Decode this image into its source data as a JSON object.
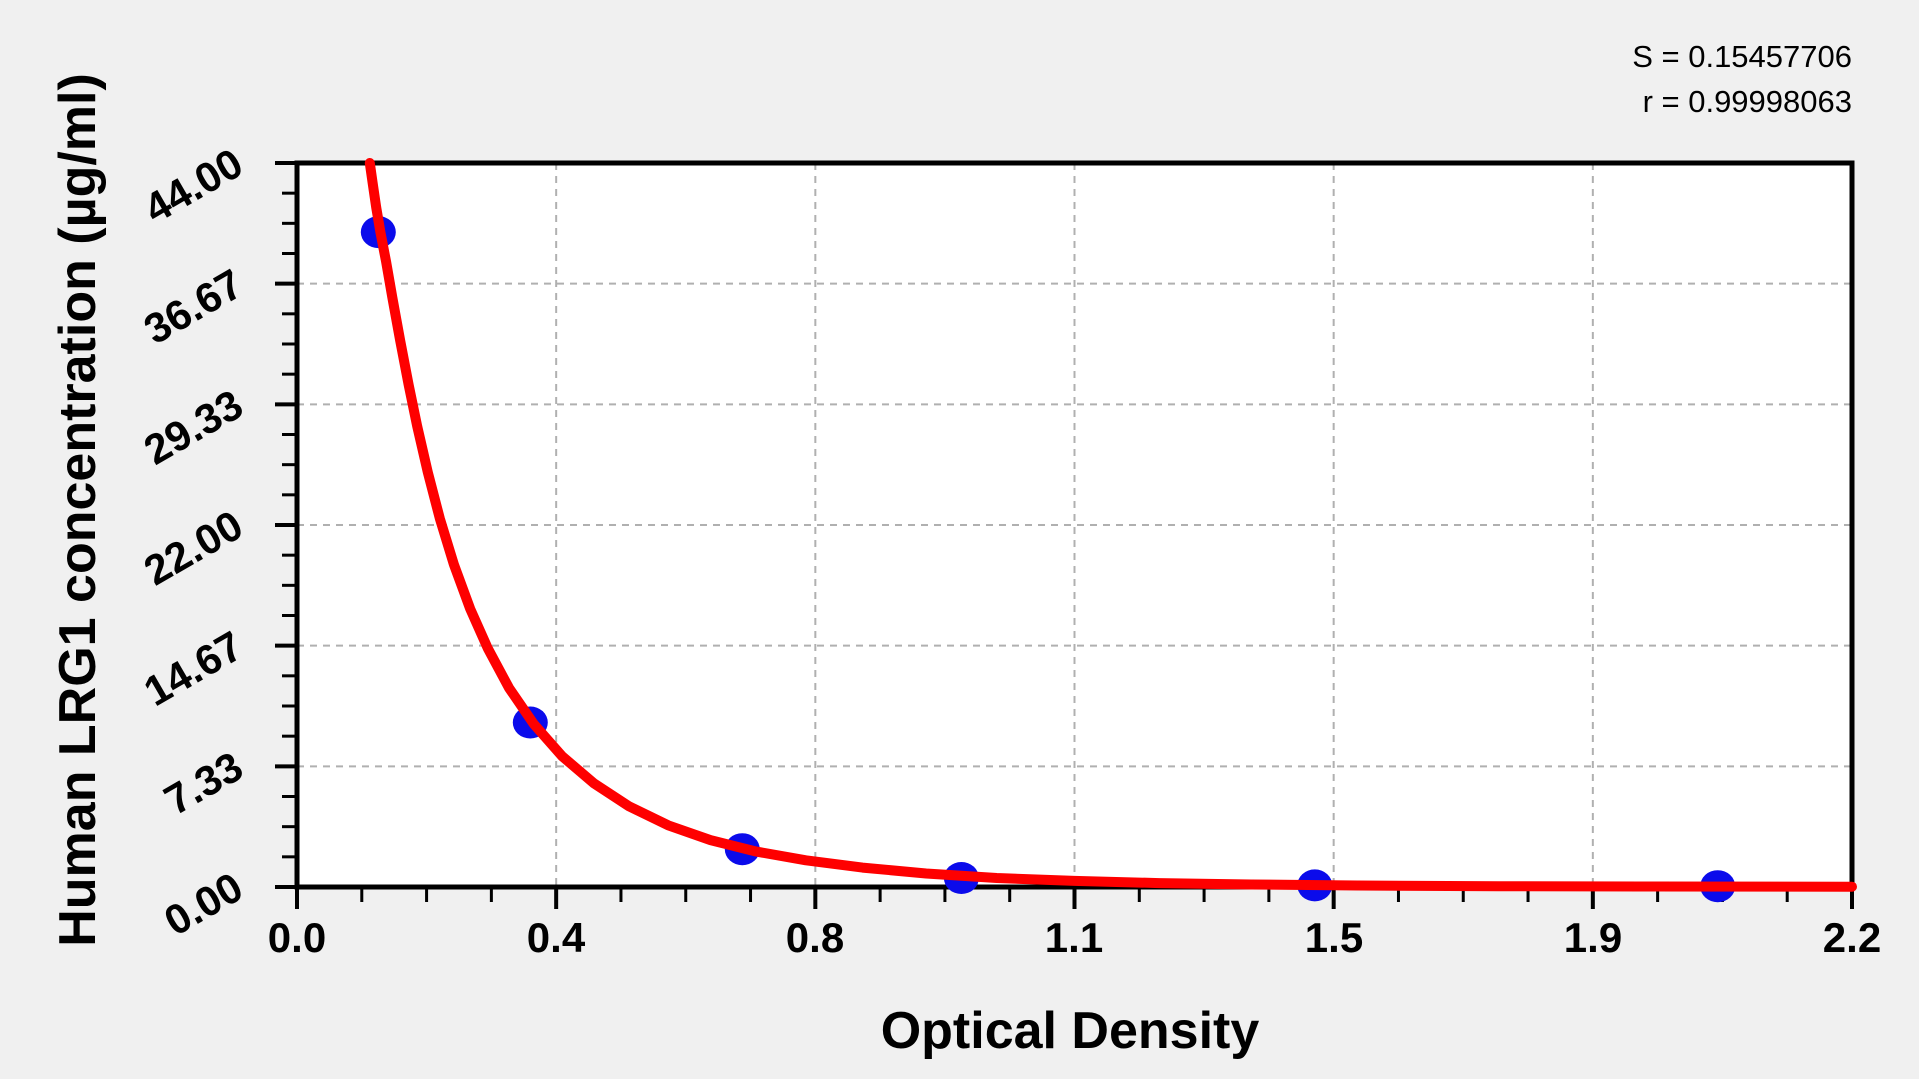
{
  "figure": {
    "background_color": "#f0f0f0",
    "plot_background_color": "#ffffff",
    "frame_color": "#000000"
  },
  "chart_data": {
    "type": "scatter",
    "title": "",
    "xlabel": "Optical Density",
    "ylabel": "Human LRG1 concentration (µg/ml)",
    "xlim": [
      0,
      2.2
    ],
    "ylim": [
      0,
      44
    ],
    "x_tick_labels": [
      "0.0",
      "0.4",
      "0.8",
      "1.1",
      "1.5",
      "1.9",
      "2.2"
    ],
    "y_tick_labels": [
      "0.00",
      "7.33",
      "14.67",
      "22.00",
      "29.33",
      "36.67",
      "44.00"
    ],
    "major_tick_intervals": 6,
    "minor_ticks_per_major": 3,
    "grid": {
      "show": true,
      "style": "dashed",
      "color": "#b0b0b0",
      "position": "major-ticks"
    },
    "legend": {
      "show": false
    },
    "annotations": [
      "S = 0.15457706",
      "r = 0.99998063"
    ],
    "stats": {
      "S": "0.15457706",
      "r": "0.99998063"
    },
    "series": [
      {
        "name": "standard points",
        "type": "scatter",
        "marker": "circle",
        "color": "#0b0beb",
        "note": "OD vs concentration, estimated from plot pixels",
        "points": [
          [
            0.115,
            39.8
          ],
          [
            0.33,
            10.0
          ],
          [
            0.63,
            2.3
          ],
          [
            0.94,
            0.55
          ],
          [
            1.44,
            0.1
          ],
          [
            2.01,
            0.05
          ]
        ]
      },
      {
        "name": "fitted standard curve",
        "type": "line",
        "color": "#fe0000",
        "points": [
          [
            0.103,
            44.0
          ],
          [
            0.107,
            42.8
          ],
          [
            0.112,
            41.3
          ],
          [
            0.118,
            39.8
          ],
          [
            0.126,
            38.0
          ],
          [
            0.135,
            35.8
          ],
          [
            0.146,
            33.2
          ],
          [
            0.158,
            30.5
          ],
          [
            0.17,
            28.0
          ],
          [
            0.185,
            25.2
          ],
          [
            0.202,
            22.4
          ],
          [
            0.222,
            19.6
          ],
          [
            0.245,
            16.9
          ],
          [
            0.27,
            14.5
          ],
          [
            0.3,
            12.1
          ],
          [
            0.335,
            9.9
          ],
          [
            0.375,
            7.95
          ],
          [
            0.42,
            6.3
          ],
          [
            0.47,
            4.9
          ],
          [
            0.525,
            3.75
          ],
          [
            0.585,
            2.85
          ],
          [
            0.65,
            2.15
          ],
          [
            0.72,
            1.62
          ],
          [
            0.8,
            1.18
          ],
          [
            0.89,
            0.82
          ],
          [
            0.99,
            0.55
          ],
          [
            1.1,
            0.37
          ],
          [
            1.22,
            0.24
          ],
          [
            1.35,
            0.15
          ],
          [
            1.5,
            0.09
          ],
          [
            1.7,
            0.05
          ],
          [
            1.9,
            0.03
          ],
          [
            2.2,
            0.02
          ]
        ]
      }
    ]
  }
}
